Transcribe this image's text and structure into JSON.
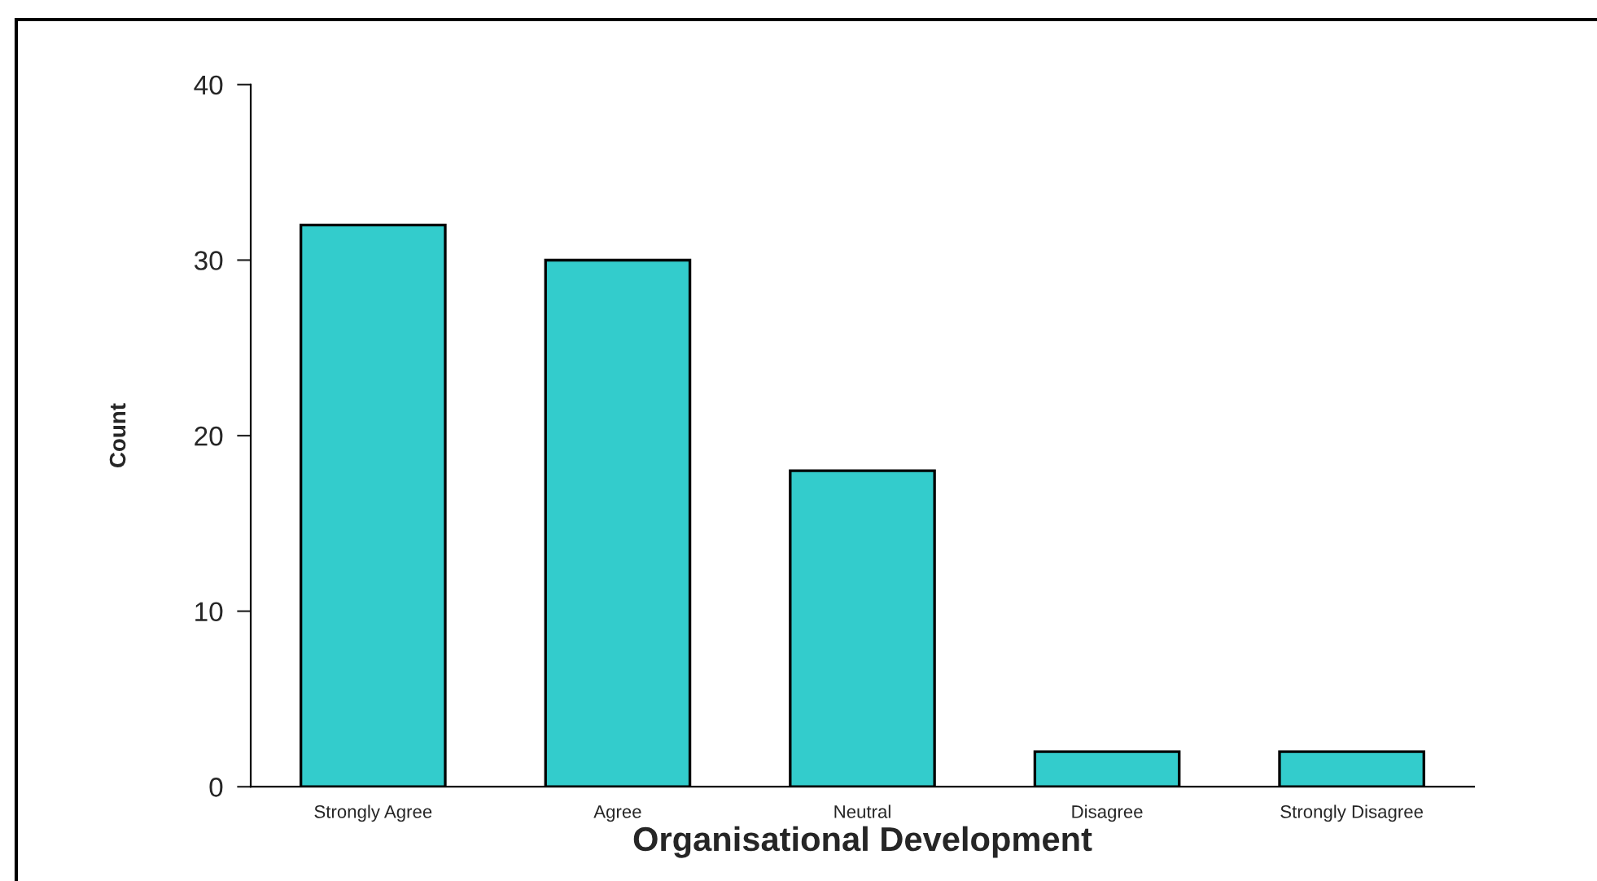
{
  "chart_data": {
    "type": "bar",
    "categories": [
      "Strongly Agree",
      "Agree",
      "Neutral",
      "Disagree",
      "Strongly Disagree"
    ],
    "values": [
      32,
      30,
      18,
      2,
      2
    ],
    "color": "#33cccc",
    "xlabel": "Organisational Development",
    "ylabel": "Count",
    "ylim": [
      0,
      40
    ],
    "yticks": [
      0,
      10,
      20,
      30,
      40
    ]
  }
}
